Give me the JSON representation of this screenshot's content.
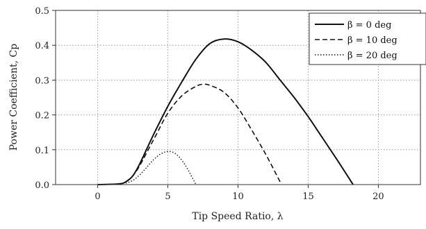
{
  "chart_data": {
    "type": "line",
    "xlabel": "Tip Speed Ratio, λ",
    "ylabel": "Power Coefficient, Cp",
    "xlim": [
      -3,
      23
    ],
    "ylim": [
      0,
      0.5
    ],
    "xticks": [
      0,
      5,
      10,
      15,
      20
    ],
    "yticks": [
      0.0,
      0.1,
      0.2,
      0.3,
      0.4,
      0.5
    ],
    "xtick_labels": [
      "0",
      "5",
      "10",
      "15",
      "20"
    ],
    "ytick_labels": [
      "0.0",
      "0.1",
      "0.2",
      "0.3",
      "0.4",
      "0.5"
    ],
    "grid": true,
    "legend": "top-right",
    "series": [
      {
        "name": "β = 0 deg",
        "style": "solid",
        "color": "#111111",
        "x": [
          0,
          1.5,
          2.0,
          2.5,
          3.0,
          4.0,
          5.0,
          6.0,
          7.0,
          8.0,
          9.0,
          10.0,
          11.0,
          12.0,
          13.0,
          14.0,
          15.0,
          16.0,
          17.0,
          18.2
        ],
        "y": [
          0.0,
          0.002,
          0.008,
          0.025,
          0.06,
          0.145,
          0.225,
          0.295,
          0.36,
          0.405,
          0.418,
          0.41,
          0.385,
          0.35,
          0.3,
          0.25,
          0.195,
          0.135,
          0.075,
          0.0
        ]
      },
      {
        "name": "β = 10 deg",
        "style": "dashed",
        "color": "#111111",
        "x": [
          2.0,
          2.5,
          3.0,
          4.0,
          5.0,
          6.0,
          7.0,
          7.5,
          8.0,
          9.0,
          10.0,
          11.0,
          12.0,
          13.1
        ],
        "y": [
          0.008,
          0.025,
          0.055,
          0.13,
          0.205,
          0.255,
          0.282,
          0.288,
          0.285,
          0.265,
          0.22,
          0.155,
          0.085,
          0.0
        ]
      },
      {
        "name": "β = 20 deg",
        "style": "dotted",
        "color": "#111111",
        "x": [
          2.0,
          2.5,
          3.0,
          3.5,
          4.0,
          4.5,
          5.0,
          5.5,
          6.0,
          6.5,
          7.0
        ],
        "y": [
          0.004,
          0.012,
          0.028,
          0.05,
          0.072,
          0.088,
          0.095,
          0.09,
          0.07,
          0.038,
          0.0
        ]
      }
    ]
  }
}
